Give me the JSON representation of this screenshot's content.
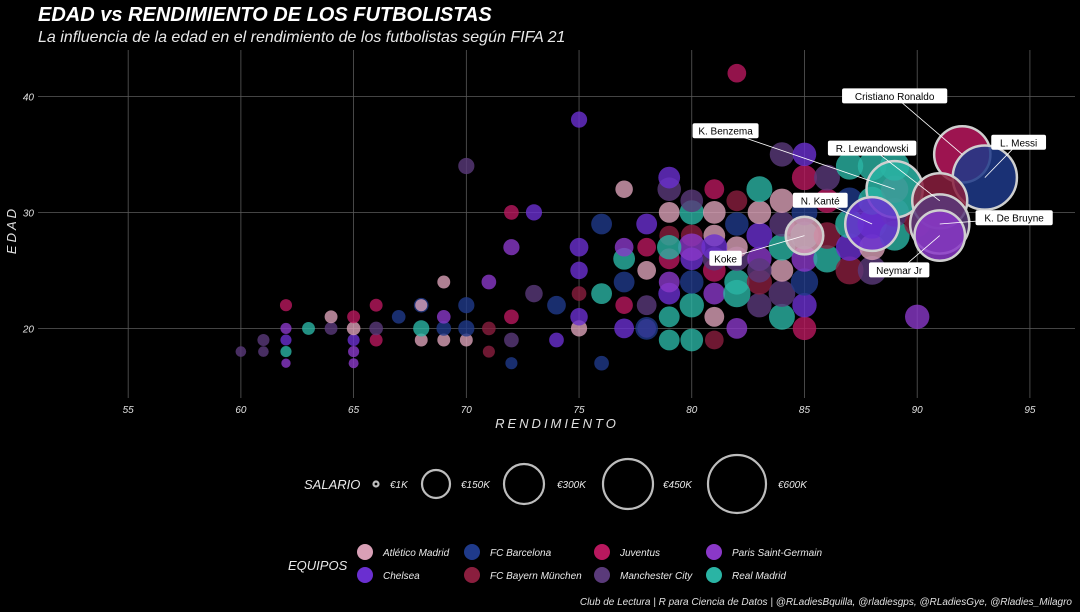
{
  "title": "EDAD vs RENDIMIENTO DE LOS FUTBOLISTAS",
  "subtitle": "La influencia de la edad en el rendimiento de los futbolistas según FIFA 21",
  "caption": "Club de Lectura | R para Ciencia de Datos | @RLadiesBquilla, @rladiesgps, @RLadiesGye, @Rladies_Milagro",
  "chart_data": {
    "type": "scatter",
    "xlabel": "RENDIMIENTO",
    "ylabel": "EDAD",
    "xlim": [
      51,
      97
    ],
    "ylim": [
      14,
      44
    ],
    "x_ticks": [
      55,
      60,
      65,
      70,
      75,
      80,
      85,
      90,
      95
    ],
    "y_ticks": [
      20,
      30,
      40
    ],
    "grid": true,
    "teams": [
      {
        "name": "Atlético Madrid",
        "color": "#d9a0b6"
      },
      {
        "name": "FC Barcelona",
        "color": "#1f3a8a"
      },
      {
        "name": "Juventus",
        "color": "#b8185e"
      },
      {
        "name": "Paris Saint-Germain",
        "color": "#8a38c8"
      },
      {
        "name": "Chelsea",
        "color": "#6a2fd0"
      },
      {
        "name": "FC Bayern München",
        "color": "#8a1e3e"
      },
      {
        "name": "Manchester City",
        "color": "#5a3a7a"
      },
      {
        "name": "Real Madrid",
        "color": "#2ab4a4"
      }
    ],
    "size_legend": {
      "title": "SALARIO",
      "items": [
        {
          "label": "€1K",
          "value": 1
        },
        {
          "label": "€150K",
          "value": 150
        },
        {
          "label": "€300K",
          "value": 300
        },
        {
          "label": "€450K",
          "value": 450
        },
        {
          "label": "€600K",
          "value": 600
        }
      ]
    },
    "team_legend_title": "EQUIPOS",
    "points": [
      {
        "x": 60,
        "y": 18,
        "team": 6,
        "s": 5
      },
      {
        "x": 61,
        "y": 18,
        "team": 6,
        "s": 5
      },
      {
        "x": 61,
        "y": 19,
        "team": 6,
        "s": 8
      },
      {
        "x": 62,
        "y": 17,
        "team": 3,
        "s": 3
      },
      {
        "x": 62,
        "y": 18,
        "team": 7,
        "s": 6
      },
      {
        "x": 62,
        "y": 19,
        "team": 4,
        "s": 6
      },
      {
        "x": 62,
        "y": 20,
        "team": 3,
        "s": 6
      },
      {
        "x": 62,
        "y": 22,
        "team": 2,
        "s": 8
      },
      {
        "x": 63,
        "y": 20,
        "team": 7,
        "s": 10
      },
      {
        "x": 64,
        "y": 20,
        "team": 6,
        "s": 10
      },
      {
        "x": 64,
        "y": 21,
        "team": 0,
        "s": 10
      },
      {
        "x": 65,
        "y": 17,
        "team": 3,
        "s": 4
      },
      {
        "x": 65,
        "y": 18,
        "team": 3,
        "s": 6
      },
      {
        "x": 65,
        "y": 19,
        "team": 4,
        "s": 8
      },
      {
        "x": 65,
        "y": 20,
        "team": 0,
        "s": 12
      },
      {
        "x": 65,
        "y": 21,
        "team": 2,
        "s": 10
      },
      {
        "x": 66,
        "y": 19,
        "team": 2,
        "s": 10
      },
      {
        "x": 66,
        "y": 20,
        "team": 6,
        "s": 12
      },
      {
        "x": 66,
        "y": 22,
        "team": 2,
        "s": 10
      },
      {
        "x": 67,
        "y": 21,
        "team": 1,
        "s": 12
      },
      {
        "x": 68,
        "y": 19,
        "team": 0,
        "s": 10
      },
      {
        "x": 68,
        "y": 20,
        "team": 7,
        "s": 20
      },
      {
        "x": 68,
        "y": 22,
        "team": 1,
        "s": 15
      },
      {
        "x": 68,
        "y": 22,
        "team": 0,
        "s": 8
      },
      {
        "x": 69,
        "y": 19,
        "team": 0,
        "s": 10
      },
      {
        "x": 69,
        "y": 20,
        "team": 1,
        "s": 15
      },
      {
        "x": 69,
        "y": 21,
        "team": 3,
        "s": 12
      },
      {
        "x": 69,
        "y": 24,
        "team": 0,
        "s": 10
      },
      {
        "x": 70,
        "y": 19,
        "team": 0,
        "s": 10
      },
      {
        "x": 70,
        "y": 20,
        "team": 1,
        "s": 20
      },
      {
        "x": 70,
        "y": 22,
        "team": 1,
        "s": 20
      },
      {
        "x": 70,
        "y": 34,
        "team": 6,
        "s": 20
      },
      {
        "x": 71,
        "y": 18,
        "team": 5,
        "s": 8
      },
      {
        "x": 71,
        "y": 20,
        "team": 5,
        "s": 12
      },
      {
        "x": 71,
        "y": 24,
        "team": 3,
        "s": 15
      },
      {
        "x": 72,
        "y": 17,
        "team": 1,
        "s": 8
      },
      {
        "x": 72,
        "y": 19,
        "team": 6,
        "s": 15
      },
      {
        "x": 72,
        "y": 21,
        "team": 2,
        "s": 15
      },
      {
        "x": 72,
        "y": 27,
        "team": 3,
        "s": 20
      },
      {
        "x": 72,
        "y": 30,
        "team": 2,
        "s": 15
      },
      {
        "x": 73,
        "y": 30,
        "team": 4,
        "s": 20
      },
      {
        "x": 73,
        "y": 23,
        "team": 6,
        "s": 25
      },
      {
        "x": 74,
        "y": 19,
        "team": 4,
        "s": 15
      },
      {
        "x": 74,
        "y": 22,
        "team": 1,
        "s": 30
      },
      {
        "x": 75,
        "y": 20,
        "team": 0,
        "s": 20
      },
      {
        "x": 75,
        "y": 21,
        "team": 4,
        "s": 25
      },
      {
        "x": 75,
        "y": 23,
        "team": 5,
        "s": 15
      },
      {
        "x": 75,
        "y": 25,
        "team": 4,
        "s": 25
      },
      {
        "x": 75,
        "y": 27,
        "team": 4,
        "s": 30
      },
      {
        "x": 75,
        "y": 38,
        "team": 4,
        "s": 20
      },
      {
        "x": 76,
        "y": 17,
        "team": 1,
        "s": 15
      },
      {
        "x": 76,
        "y": 29,
        "team": 1,
        "s": 40
      },
      {
        "x": 76,
        "y": 23,
        "team": 7,
        "s": 40
      },
      {
        "x": 77,
        "y": 20,
        "team": 4,
        "s": 35
      },
      {
        "x": 77,
        "y": 22,
        "team": 2,
        "s": 25
      },
      {
        "x": 77,
        "y": 24,
        "team": 1,
        "s": 40
      },
      {
        "x": 77,
        "y": 26,
        "team": 7,
        "s": 45
      },
      {
        "x": 77,
        "y": 27,
        "team": 3,
        "s": 30
      },
      {
        "x": 77,
        "y": 32,
        "team": 0,
        "s": 25
      },
      {
        "x": 78,
        "y": 20,
        "team": 3,
        "s": 30
      },
      {
        "x": 78,
        "y": 22,
        "team": 6,
        "s": 35
      },
      {
        "x": 78,
        "y": 25,
        "team": 0,
        "s": 30
      },
      {
        "x": 78,
        "y": 27,
        "team": 2,
        "s": 30
      },
      {
        "x": 78,
        "y": 29,
        "team": 4,
        "s": 40
      },
      {
        "x": 78,
        "y": 20,
        "team": 1,
        "s": 50
      },
      {
        "x": 79,
        "y": 19,
        "team": 7,
        "s": 40
      },
      {
        "x": 79,
        "y": 21,
        "team": 7,
        "s": 40
      },
      {
        "x": 79,
        "y": 23,
        "team": 4,
        "s": 45
      },
      {
        "x": 79,
        "y": 24,
        "team": 3,
        "s": 40
      },
      {
        "x": 79,
        "y": 26,
        "team": 2,
        "s": 40
      },
      {
        "x": 79,
        "y": 28,
        "team": 5,
        "s": 35
      },
      {
        "x": 79,
        "y": 30,
        "team": 0,
        "s": 40
      },
      {
        "x": 79,
        "y": 32,
        "team": 6,
        "s": 55
      },
      {
        "x": 79,
        "y": 33,
        "team": 4,
        "s": 45
      },
      {
        "x": 80,
        "y": 19,
        "team": 7,
        "s": 50
      },
      {
        "x": 80,
        "y": 22,
        "team": 7,
        "s": 60
      },
      {
        "x": 80,
        "y": 24,
        "team": 1,
        "s": 55
      },
      {
        "x": 80,
        "y": 26,
        "team": 4,
        "s": 50
      },
      {
        "x": 80,
        "y": 28,
        "team": 5,
        "s": 45
      },
      {
        "x": 80,
        "y": 30,
        "team": 7,
        "s": 60
      },
      {
        "x": 80,
        "y": 31,
        "team": 6,
        "s": 50
      },
      {
        "x": 81,
        "y": 19,
        "team": 5,
        "s": 30
      },
      {
        "x": 81,
        "y": 21,
        "team": 0,
        "s": 35
      },
      {
        "x": 81,
        "y": 23,
        "team": 3,
        "s": 45
      },
      {
        "x": 81,
        "y": 25,
        "team": 2,
        "s": 50
      },
      {
        "x": 81,
        "y": 28,
        "team": 0,
        "s": 45
      },
      {
        "x": 81,
        "y": 30,
        "team": 0,
        "s": 50
      },
      {
        "x": 81,
        "y": 32,
        "team": 2,
        "s": 35
      },
      {
        "x": 81,
        "y": 26,
        "team": 6,
        "s": 55
      },
      {
        "x": 82,
        "y": 20,
        "team": 3,
        "s": 40
      },
      {
        "x": 82,
        "y": 24,
        "team": 7,
        "s": 65
      },
      {
        "x": 82,
        "y": 26,
        "team": 6,
        "s": 60
      },
      {
        "x": 82,
        "y": 27,
        "team": 0,
        "s": 45
      },
      {
        "x": 82,
        "y": 29,
        "team": 1,
        "s": 55
      },
      {
        "x": 82,
        "y": 31,
        "team": 5,
        "s": 40
      },
      {
        "x": 82,
        "y": 42,
        "team": 2,
        "s": 30
      },
      {
        "x": 83,
        "y": 22,
        "team": 6,
        "s": 60
      },
      {
        "x": 83,
        "y": 24,
        "team": 5,
        "s": 65
      },
      {
        "x": 83,
        "y": 26,
        "team": 3,
        "s": 60
      },
      {
        "x": 83,
        "y": 28,
        "team": 4,
        "s": 70
      },
      {
        "x": 83,
        "y": 30,
        "team": 0,
        "s": 55
      },
      {
        "x": 83,
        "y": 32,
        "team": 7,
        "s": 70
      },
      {
        "x": 84,
        "y": 21,
        "team": 7,
        "s": 70
      },
      {
        "x": 84,
        "y": 23,
        "team": 6,
        "s": 75
      },
      {
        "x": 84,
        "y": 25,
        "team": 0,
        "s": 50
      },
      {
        "x": 84,
        "y": 27,
        "team": 7,
        "s": 75
      },
      {
        "x": 84,
        "y": 29,
        "team": 6,
        "s": 65
      },
      {
        "x": 84,
        "y": 31,
        "team": 0,
        "s": 60
      },
      {
        "x": 84,
        "y": 35,
        "team": 6,
        "s": 60
      },
      {
        "x": 85,
        "y": 20,
        "team": 2,
        "s": 55
      },
      {
        "x": 85,
        "y": 22,
        "team": 4,
        "s": 60
      },
      {
        "x": 85,
        "y": 24,
        "team": 1,
        "s": 80
      },
      {
        "x": 85,
        "y": 26,
        "team": 3,
        "s": 70
      },
      {
        "x": 85,
        "y": 28,
        "team": 7,
        "s": 85
      },
      {
        "x": 85,
        "y": 30,
        "team": 1,
        "s": 70
      },
      {
        "x": 85,
        "y": 33,
        "team": 2,
        "s": 65
      },
      {
        "x": 85,
        "y": 35,
        "team": 4,
        "s": 55
      },
      {
        "x": 86,
        "y": 26,
        "team": 7,
        "s": 80
      },
      {
        "x": 86,
        "y": 28,
        "team": 5,
        "s": 75
      },
      {
        "x": 86,
        "y": 31,
        "team": 2,
        "s": 60
      },
      {
        "x": 86,
        "y": 33,
        "team": 6,
        "s": 70
      },
      {
        "x": 87,
        "y": 25,
        "team": 5,
        "s": 85
      },
      {
        "x": 87,
        "y": 27,
        "team": 4,
        "s": 80
      },
      {
        "x": 87,
        "y": 29,
        "team": 7,
        "s": 90
      },
      {
        "x": 87,
        "y": 31,
        "team": 1,
        "s": 75
      },
      {
        "x": 87,
        "y": 34,
        "team": 7,
        "s": 80
      },
      {
        "x": 88,
        "y": 25,
        "team": 6,
        "s": 90
      },
      {
        "x": 88,
        "y": 27,
        "team": 0,
        "s": 70
      },
      {
        "x": 88,
        "y": 29,
        "team": 4,
        "s": 95
      },
      {
        "x": 88,
        "y": 31,
        "team": 7,
        "s": 85
      },
      {
        "x": 88,
        "y": 34,
        "team": 7,
        "s": 90
      },
      {
        "x": 89,
        "y": 28,
        "team": 7,
        "s": 100
      },
      {
        "x": 89,
        "y": 30,
        "team": 6,
        "s": 90
      },
      {
        "x": 89,
        "y": 32,
        "team": 2,
        "s": 80
      },
      {
        "x": 89,
        "y": 34,
        "team": 7,
        "s": 95
      },
      {
        "x": 90,
        "y": 21,
        "team": 3,
        "s": 60
      },
      {
        "x": 90,
        "y": 29,
        "team": 5,
        "s": 70
      },
      {
        "x": 82,
        "y": 23,
        "team": 7,
        "s": 80
      },
      {
        "x": 80,
        "y": 27,
        "team": 3,
        "s": 80
      },
      {
        "x": 79,
        "y": 27,
        "team": 7,
        "s": 60
      },
      {
        "x": 83,
        "y": 25,
        "team": 6,
        "s": 60
      },
      {
        "x": 81,
        "y": 27,
        "team": 4,
        "s": 70
      }
    ],
    "labeled": [
      {
        "name": "Cristiano Ronaldo",
        "x": 92,
        "y": 35,
        "team": 2,
        "s": 420,
        "lx": 89,
        "ly": 40,
        "anchor": "middle"
      },
      {
        "name": "L. Messi",
        "x": 93,
        "y": 33,
        "team": 1,
        "s": 560,
        "lx": 94.5,
        "ly": 36,
        "anchor": "middle"
      },
      {
        "name": "K. Benzema",
        "x": 89,
        "y": 32,
        "team": 7,
        "s": 420,
        "lx": 81.5,
        "ly": 37,
        "anchor": "middle"
      },
      {
        "name": "R. Lewandowski",
        "x": 91,
        "y": 31,
        "team": 5,
        "s": 400,
        "lx": 88,
        "ly": 35.5,
        "anchor": "middle"
      },
      {
        "name": "N. Kanté",
        "x": 88,
        "y": 29,
        "team": 4,
        "s": 380,
        "lx": 85.7,
        "ly": 31,
        "anchor": "middle"
      },
      {
        "name": "K. De Bruyne",
        "x": 91,
        "y": 29,
        "team": 6,
        "s": 470,
        "lx": 94.3,
        "ly": 29.5,
        "anchor": "middle"
      },
      {
        "name": "Koke",
        "x": 85,
        "y": 28,
        "team": 0,
        "s": 170,
        "lx": 81.5,
        "ly": 26,
        "anchor": "middle"
      },
      {
        "name": "Neymar Jr",
        "x": 91,
        "y": 28,
        "team": 3,
        "s": 330,
        "lx": 89.2,
        "ly": 25,
        "anchor": "middle"
      }
    ]
  }
}
